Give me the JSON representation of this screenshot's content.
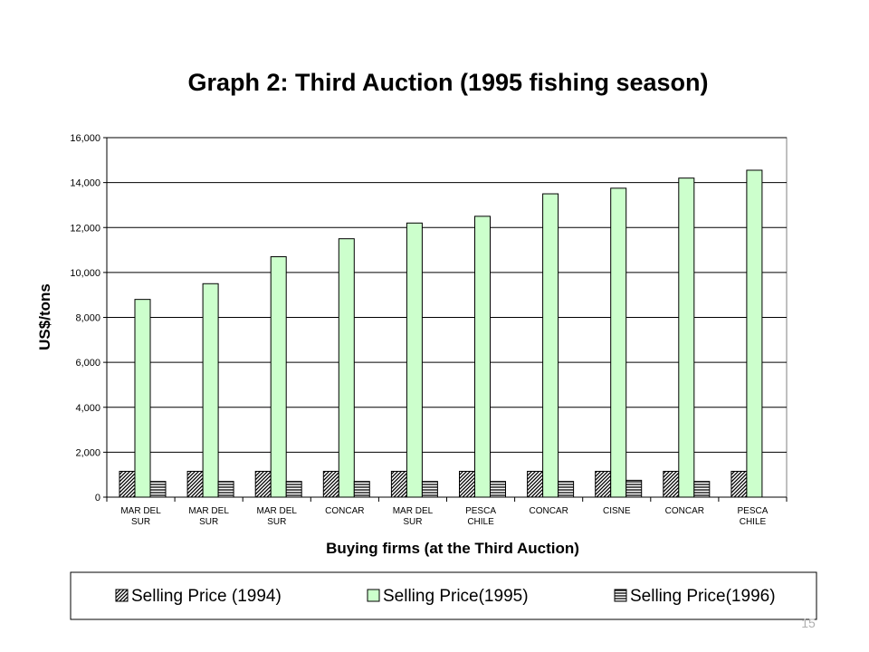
{
  "page": {
    "page_number": "15"
  },
  "chart_data": {
    "type": "bar",
    "title": "Graph 2: Third Auction (1995 fishing season)",
    "xlabel": "Buying firms (at the Third Auction)",
    "ylabel": "US$/tons",
    "ylim": [
      0,
      16000
    ],
    "yticks": [
      "0",
      "2,000",
      "4,000",
      "6,000",
      "8,000",
      "10,000",
      "12,000",
      "14,000",
      "16,000"
    ],
    "grid": true,
    "legend_position": "bottom",
    "categories": [
      [
        "MAR DEL",
        "SUR"
      ],
      [
        "MAR DEL",
        "SUR"
      ],
      [
        "MAR DEL",
        "SUR"
      ],
      [
        "CONCAR"
      ],
      [
        "MAR DEL",
        "SUR"
      ],
      [
        "PESCA",
        "CHILE"
      ],
      [
        "CONCAR"
      ],
      [
        "CISNE"
      ],
      [
        "CONCAR"
      ],
      [
        "PESCA",
        "CHILE"
      ]
    ],
    "series": [
      {
        "name": "Selling Price (1994)",
        "fill": "pattern-diag",
        "color": "#808080",
        "values": [
          1150,
          1150,
          1150,
          1150,
          1150,
          1150,
          1150,
          1150,
          1150,
          1150
        ]
      },
      {
        "name": "Selling Price(1995)",
        "fill": "solid",
        "color": "#ccffcc",
        "values": [
          8800,
          9500,
          10700,
          11500,
          12200,
          12500,
          13500,
          13750,
          14200,
          14550
        ]
      },
      {
        "name": "Selling Price(1996)",
        "fill": "pattern-horiz",
        "color": "#808080",
        "values": [
          700,
          700,
          700,
          700,
          700,
          700,
          700,
          750,
          700,
          null
        ]
      }
    ]
  }
}
